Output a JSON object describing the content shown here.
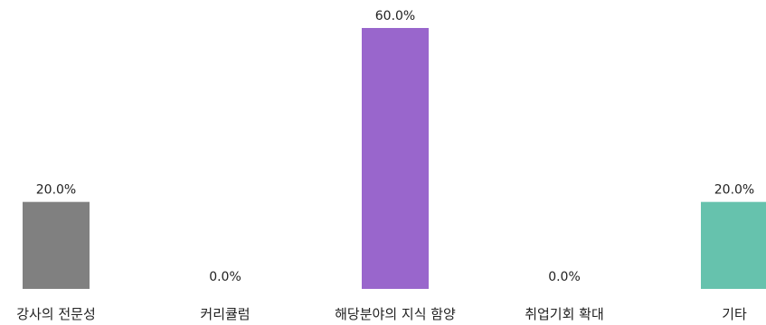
{
  "chart_data": {
    "type": "bar",
    "categories": [
      "강사의 전문성",
      "커리큘럼",
      "해당분야의 지식 함양",
      "취업기회 확대",
      "기타"
    ],
    "values": [
      20.0,
      0.0,
      60.0,
      0.0,
      20.0
    ],
    "value_labels": [
      "20.0%",
      "0.0%",
      "60.0%",
      "0.0%",
      "20.0%"
    ],
    "colors": [
      "#808080",
      "#808080",
      "#9966cc",
      "#808080",
      "#66c2ad"
    ],
    "ylim": [
      0,
      60
    ],
    "grid": false,
    "legend": "none"
  }
}
